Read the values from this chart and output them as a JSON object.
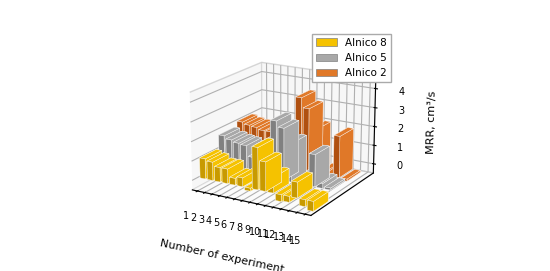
{
  "title": "",
  "xlabel": "Number of experiment",
  "ylabel": "MRR, cm³/s",
  "categories": [
    1,
    2,
    3,
    4,
    5,
    6,
    7,
    8,
    9,
    10,
    11,
    12,
    13,
    14,
    15
  ],
  "series": {
    "Alnico 8": [
      1.05,
      0.95,
      0.75,
      0.75,
      0.35,
      0.45,
      -0.15,
      2.15,
      1.5,
      0.8,
      -0.35,
      -0.3,
      0.8,
      -0.35,
      -0.5
    ],
    "Alnico 5": [
      1.75,
      1.6,
      1.5,
      1.45,
      0.9,
      1.6,
      0.05,
      3.0,
      2.7,
      2.0,
      0.2,
      0.2,
      1.65,
      0.25,
      0.1
    ],
    "Alnico 2": [
      2.0,
      1.9,
      1.85,
      1.75,
      1.75,
      1.85,
      1.15,
      0.3,
      3.8,
      3.3,
      2.3,
      0.1,
      0.1,
      2.15,
      -0.1
    ]
  },
  "colors": {
    "Alnico 8": "#F5C200",
    "Alnico 5": "#A8A8A8",
    "Alnico 2": "#E07828"
  },
  "face_colors": {
    "Alnico 8": "#C89A00",
    "Alnico 5": "#808080",
    "Alnico 2": "#B05010"
  },
  "zlim": [
    -0.5,
    4.5
  ],
  "zticks": [
    0,
    1,
    2,
    3,
    4
  ],
  "background_color": "#ffffff",
  "elev": 18,
  "azim": -60
}
